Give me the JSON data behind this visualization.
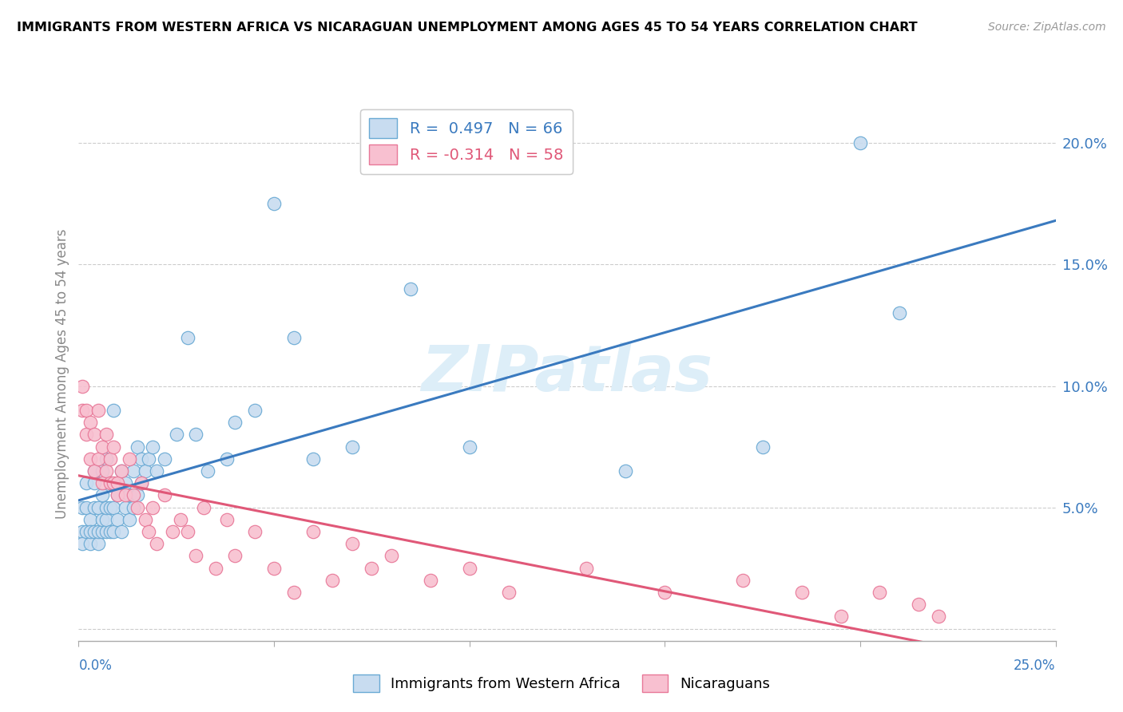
{
  "title": "IMMIGRANTS FROM WESTERN AFRICA VS NICARAGUAN UNEMPLOYMENT AMONG AGES 45 TO 54 YEARS CORRELATION CHART",
  "source": "Source: ZipAtlas.com",
  "ylabel": "Unemployment Among Ages 45 to 54 years",
  "blue_R": 0.497,
  "blue_N": 66,
  "pink_R": -0.314,
  "pink_N": 58,
  "blue_color": "#c8dcf0",
  "pink_color": "#f8c0d0",
  "blue_edge_color": "#6aaad4",
  "pink_edge_color": "#e87898",
  "blue_line_color": "#3a7abf",
  "pink_line_color": "#e05878",
  "watermark_color": "#d8e8f4",
  "watermark": "ZIPatlas",
  "blue_scatter_x": [
    0.001,
    0.001,
    0.001,
    0.002,
    0.002,
    0.002,
    0.003,
    0.003,
    0.003,
    0.004,
    0.004,
    0.004,
    0.004,
    0.005,
    0.005,
    0.005,
    0.006,
    0.006,
    0.006,
    0.006,
    0.007,
    0.007,
    0.007,
    0.007,
    0.008,
    0.008,
    0.008,
    0.009,
    0.009,
    0.009,
    0.01,
    0.01,
    0.011,
    0.011,
    0.012,
    0.012,
    0.013,
    0.013,
    0.014,
    0.014,
    0.015,
    0.015,
    0.016,
    0.016,
    0.017,
    0.018,
    0.019,
    0.02,
    0.022,
    0.025,
    0.028,
    0.03,
    0.033,
    0.038,
    0.04,
    0.045,
    0.05,
    0.055,
    0.06,
    0.07,
    0.085,
    0.1,
    0.14,
    0.175,
    0.2,
    0.21
  ],
  "blue_scatter_y": [
    0.04,
    0.05,
    0.035,
    0.04,
    0.05,
    0.06,
    0.035,
    0.045,
    0.04,
    0.04,
    0.05,
    0.06,
    0.065,
    0.035,
    0.04,
    0.05,
    0.04,
    0.045,
    0.055,
    0.065,
    0.04,
    0.045,
    0.05,
    0.07,
    0.04,
    0.05,
    0.06,
    0.04,
    0.05,
    0.09,
    0.045,
    0.055,
    0.04,
    0.065,
    0.05,
    0.06,
    0.045,
    0.055,
    0.05,
    0.065,
    0.055,
    0.075,
    0.06,
    0.07,
    0.065,
    0.07,
    0.075,
    0.065,
    0.07,
    0.08,
    0.12,
    0.08,
    0.065,
    0.07,
    0.085,
    0.09,
    0.175,
    0.12,
    0.07,
    0.075,
    0.14,
    0.075,
    0.065,
    0.075,
    0.2,
    0.13
  ],
  "pink_scatter_x": [
    0.001,
    0.001,
    0.002,
    0.002,
    0.003,
    0.003,
    0.004,
    0.004,
    0.005,
    0.005,
    0.006,
    0.006,
    0.007,
    0.007,
    0.008,
    0.008,
    0.009,
    0.009,
    0.01,
    0.01,
    0.011,
    0.012,
    0.013,
    0.014,
    0.015,
    0.016,
    0.017,
    0.018,
    0.019,
    0.02,
    0.022,
    0.024,
    0.026,
    0.028,
    0.03,
    0.032,
    0.035,
    0.038,
    0.04,
    0.045,
    0.05,
    0.055,
    0.06,
    0.065,
    0.07,
    0.075,
    0.08,
    0.09,
    0.1,
    0.11,
    0.13,
    0.15,
    0.17,
    0.185,
    0.195,
    0.205,
    0.215,
    0.22
  ],
  "pink_scatter_y": [
    0.1,
    0.09,
    0.08,
    0.09,
    0.07,
    0.085,
    0.065,
    0.08,
    0.07,
    0.09,
    0.06,
    0.075,
    0.065,
    0.08,
    0.07,
    0.06,
    0.075,
    0.06,
    0.06,
    0.055,
    0.065,
    0.055,
    0.07,
    0.055,
    0.05,
    0.06,
    0.045,
    0.04,
    0.05,
    0.035,
    0.055,
    0.04,
    0.045,
    0.04,
    0.03,
    0.05,
    0.025,
    0.045,
    0.03,
    0.04,
    0.025,
    0.015,
    0.04,
    0.02,
    0.035,
    0.025,
    0.03,
    0.02,
    0.025,
    0.015,
    0.025,
    0.015,
    0.02,
    0.015,
    0.005,
    0.015,
    0.01,
    0.005
  ],
  "xlim": [
    0.0,
    0.25
  ],
  "ylim": [
    -0.005,
    0.215
  ],
  "yticks": [
    0.0,
    0.05,
    0.1,
    0.15,
    0.2
  ],
  "ytick_labels": [
    "",
    "5.0%",
    "10.0%",
    "15.0%",
    "20.0%"
  ]
}
